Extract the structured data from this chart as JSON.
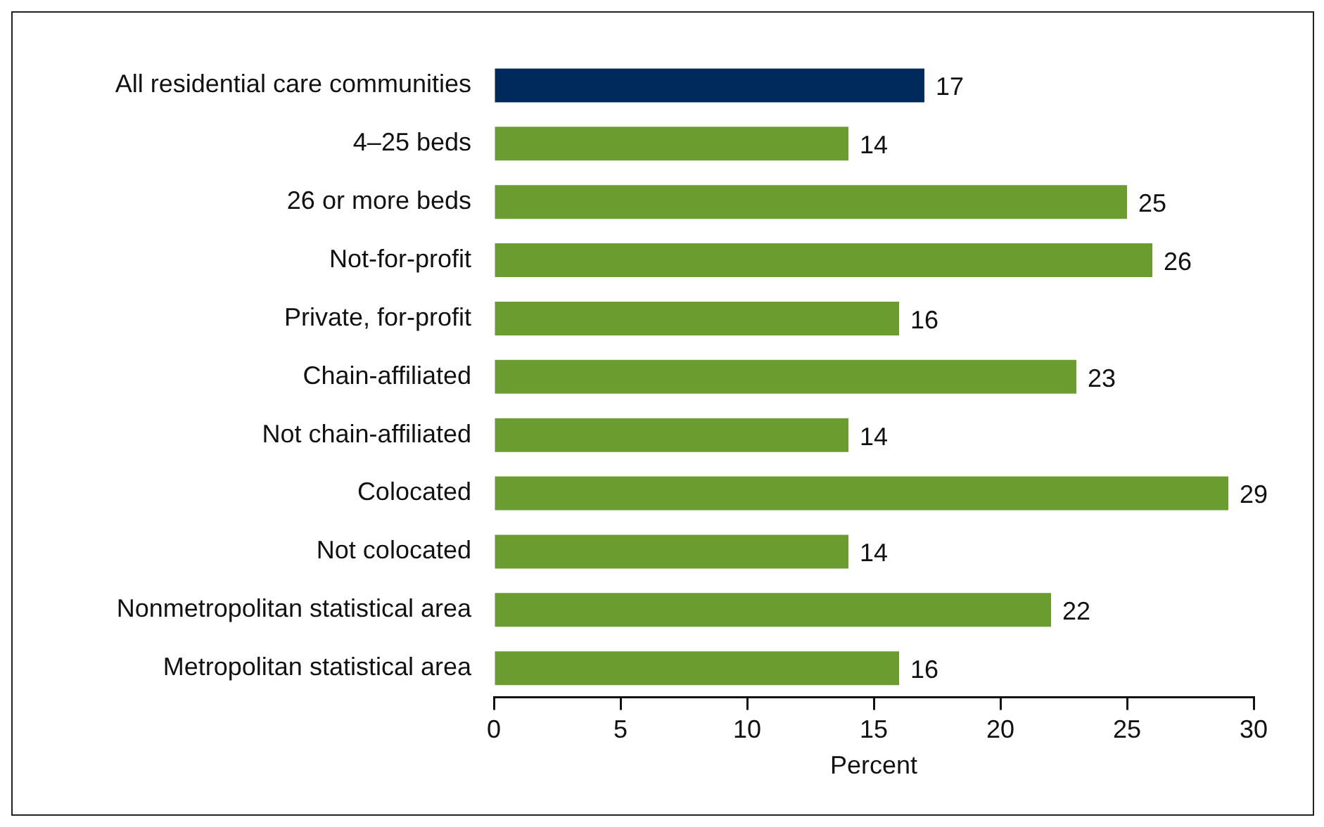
{
  "chart_data": {
    "type": "bar",
    "orientation": "horizontal",
    "xlabel": "Percent",
    "categories": [
      "All residential care communities",
      "4–25 beds",
      "26 or more beds",
      "Not-for-profit",
      "Private, for-profit",
      "Chain-affiliated",
      "Not chain-affiliated",
      "Colocated",
      "Not colocated",
      "Nonmetropolitan statistical area",
      "Metropolitan statistical area"
    ],
    "values": [
      17,
      14,
      25,
      26,
      16,
      23,
      14,
      29,
      14,
      22,
      16
    ],
    "colors": [
      "#002a5c",
      "#6a9c2f",
      "#6a9c2f",
      "#6a9c2f",
      "#6a9c2f",
      "#6a9c2f",
      "#6a9c2f",
      "#6a9c2f",
      "#6a9c2f",
      "#6a9c2f",
      "#6a9c2f"
    ],
    "xlim": [
      0,
      30
    ],
    "xticks": [
      0,
      5,
      10,
      15,
      20,
      25,
      30
    ],
    "data_labels": true,
    "grid": false,
    "legend": false
  }
}
